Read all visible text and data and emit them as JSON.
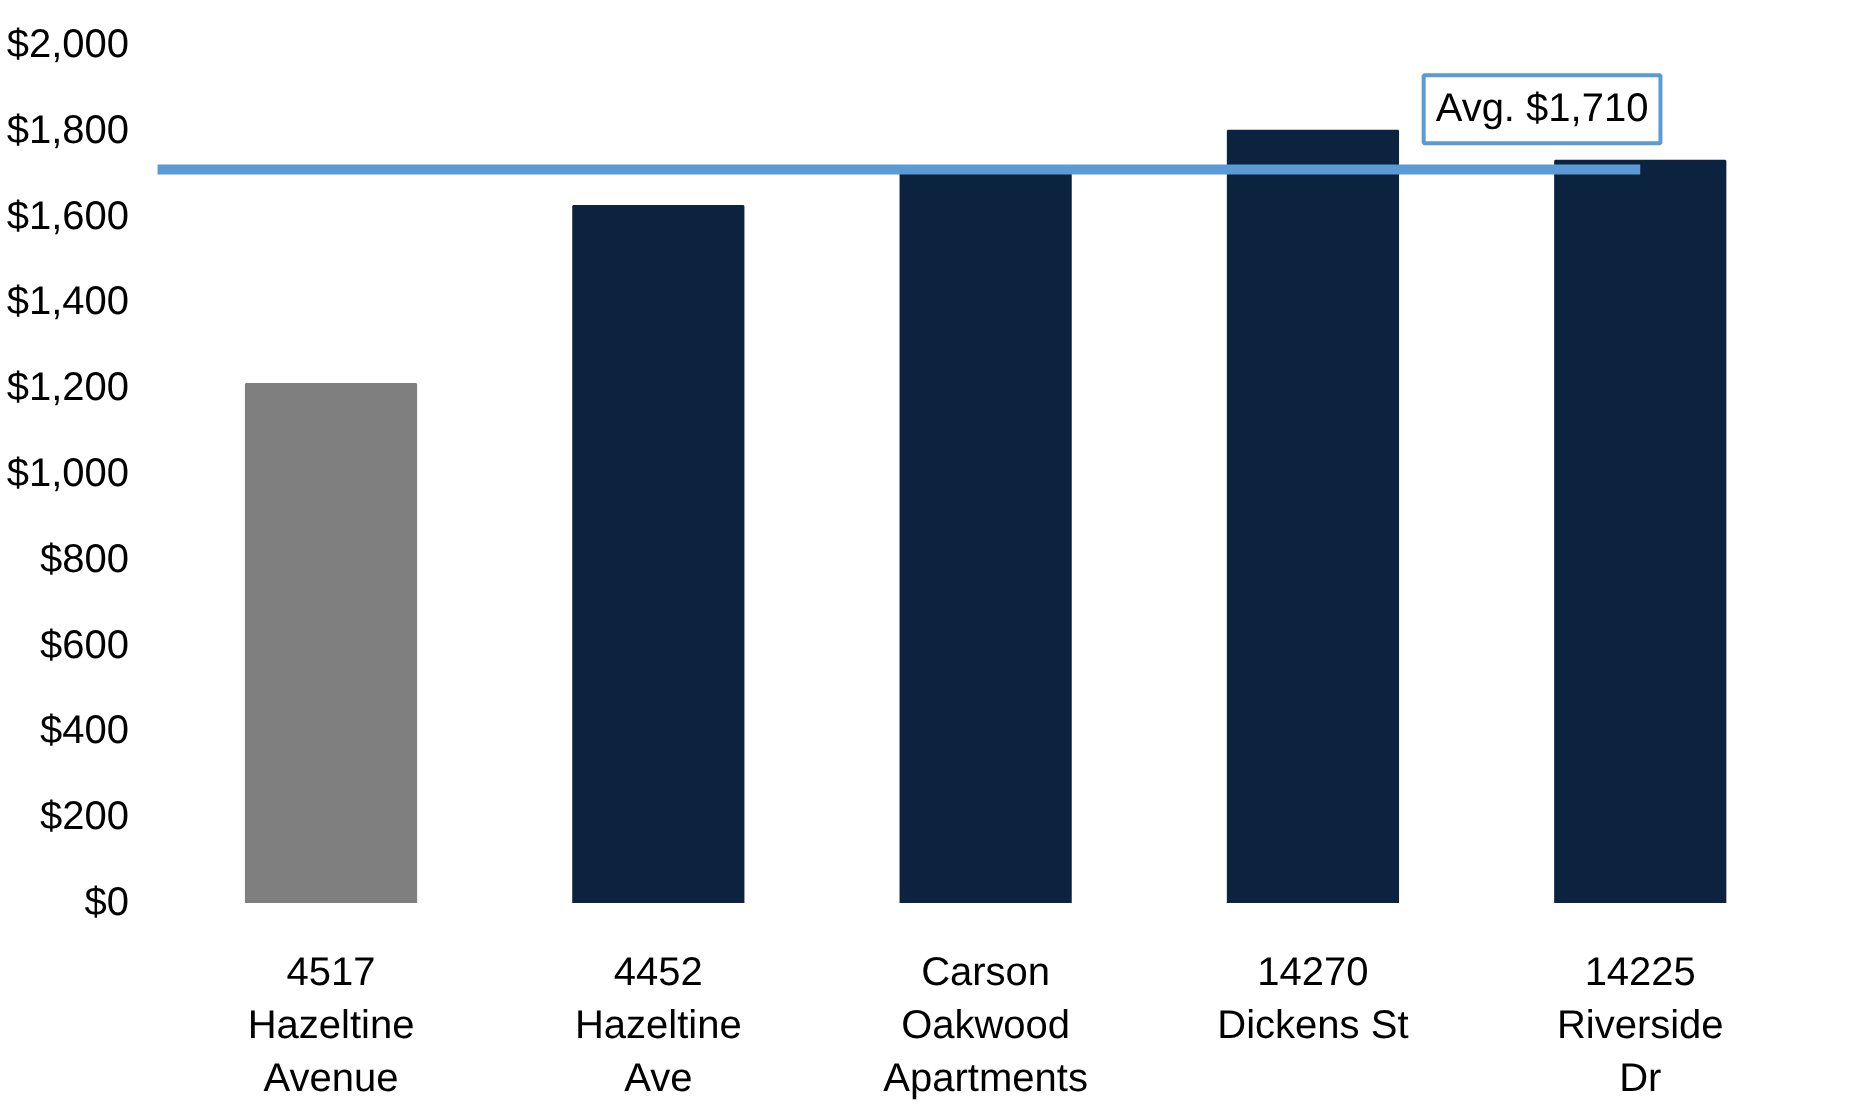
{
  "chart_data": {
    "type": "bar",
    "categories": [
      "4517\nHazeltine\nAvenue",
      "4452\nHazeltine\nAve",
      "Carson\nOakwood\nApartments",
      "14270\nDickens St",
      "14225\nRiverside\nDr"
    ],
    "values": [
      1210,
      1625,
      1700,
      1800,
      1730
    ],
    "colors": [
      "#7f7f7f",
      "#0c2340",
      "#0c2340",
      "#0c2340",
      "#0c2340"
    ],
    "ylim": [
      0,
      2000
    ],
    "yticks": [
      {
        "value": 0,
        "label": "$0"
      },
      {
        "value": 200,
        "label": "$200"
      },
      {
        "value": 400,
        "label": "$400"
      },
      {
        "value": 600,
        "label": "$600"
      },
      {
        "value": 800,
        "label": "$800"
      },
      {
        "value": 1000,
        "label": "$1,000"
      },
      {
        "value": 1200,
        "label": "$1,200"
      },
      {
        "value": 1400,
        "label": "$1,400"
      },
      {
        "value": 1600,
        "label": "$1,600"
      },
      {
        "value": 1800,
        "label": "$1,800"
      },
      {
        "value": 2000,
        "label": "$2,000"
      }
    ],
    "ref_lines": [
      {
        "axis": "y",
        "value": 1710,
        "label": "Avg. $1,710",
        "color": "#5b9bd5"
      }
    ],
    "grid": false
  }
}
